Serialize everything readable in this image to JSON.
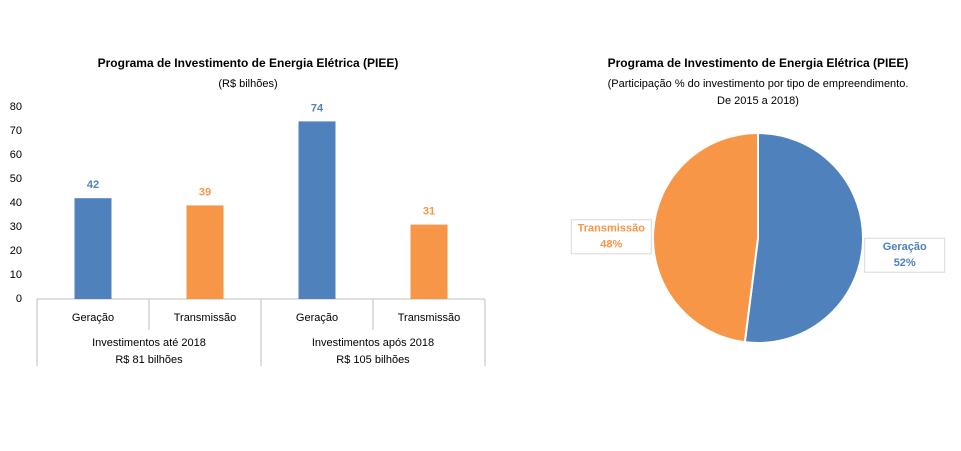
{
  "chart_data": [
    {
      "type": "bar",
      "title": "Programa de Investimento de Energia Elétrica (PIEE)",
      "subtitle": "(R$ bilhões)",
      "categories": [
        "Geração",
        "Transmissão",
        "Geração",
        "Transmissão"
      ],
      "values": [
        42,
        39,
        74,
        31
      ],
      "colors": [
        "#4f81bd",
        "#f79646",
        "#4f81bd",
        "#f79646"
      ],
      "groups": [
        {
          "name": "Investimentos até 2018",
          "total": "R$ 81 bilhões"
        },
        {
          "name": "Investimentos após 2018",
          "total": "R$ 105 bilhões"
        }
      ],
      "ylim": [
        0,
        80
      ],
      "yticks": [
        0,
        10,
        20,
        30,
        40,
        50,
        60,
        70,
        80
      ],
      "grid": false
    },
    {
      "type": "pie",
      "title": "Programa de Investimento de Energia Elétrica (PIEE)",
      "subtitle": [
        "(Participação % do investimento por tipo de empreendimento.",
        "De 2015 a 2018)"
      ],
      "categories": [
        "Geração",
        "Transmissão"
      ],
      "values": [
        52,
        48
      ],
      "value_labels": [
        "52%",
        "48%"
      ],
      "colors": [
        "#4f81bd",
        "#f79646"
      ]
    }
  ]
}
